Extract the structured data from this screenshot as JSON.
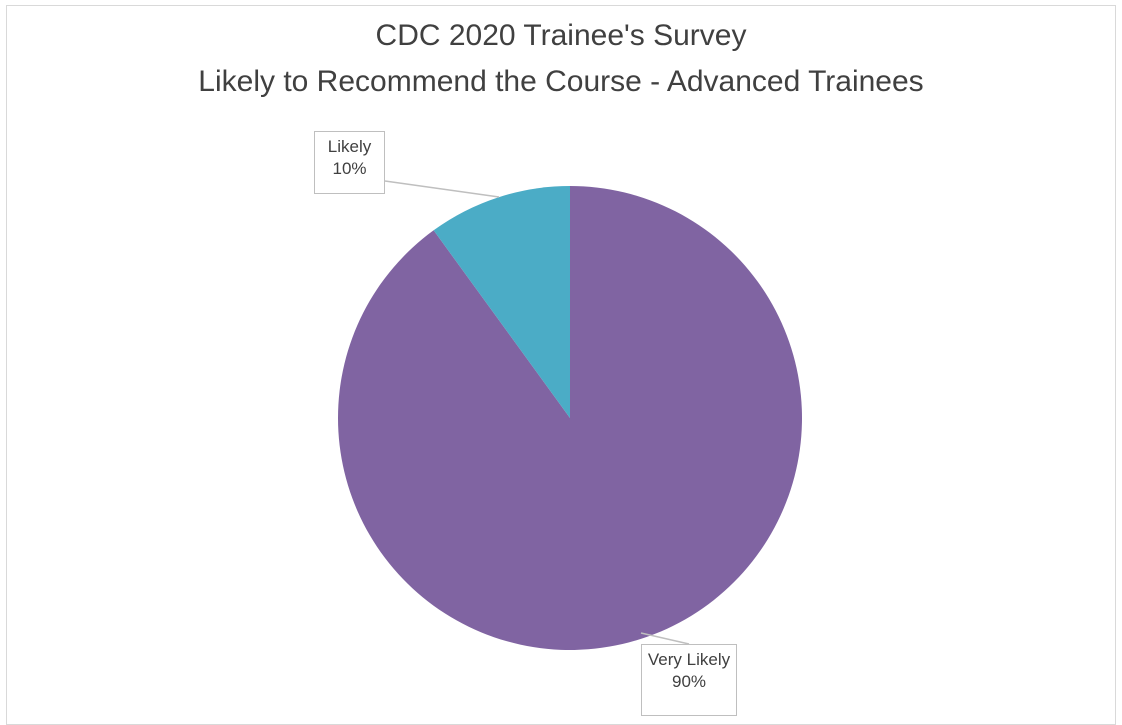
{
  "chart_data": {
    "type": "pie",
    "title": "CDC 2020 Trainee's Survey",
    "subtitle": "Likely to Recommend the Course - Advanced Trainees",
    "slices": [
      {
        "name": "Very Likely",
        "value": 90,
        "label": "90%",
        "color": "#8064a2"
      },
      {
        "name": "Likely",
        "value": 10,
        "label": "10%",
        "color": "#4bacc6"
      }
    ],
    "start_angle_deg": 0,
    "direction": "clockwise",
    "legend": "none"
  }
}
